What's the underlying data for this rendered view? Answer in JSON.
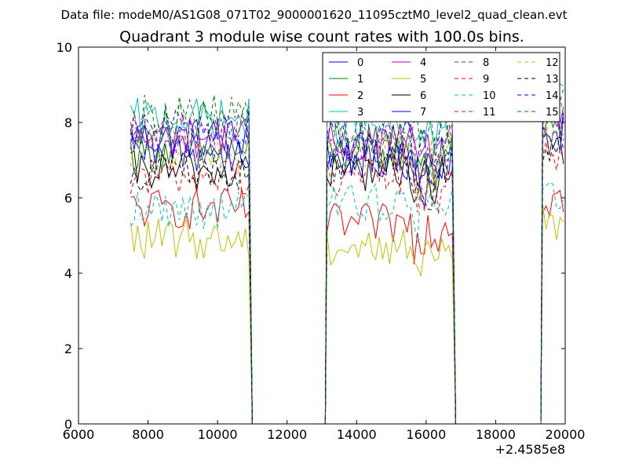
{
  "suptitle": "Data file: modeM0/AS1G08_071T02_9000001620_11095cztM0_level2_quad_clean.evt",
  "chart_data": {
    "type": "line",
    "title": "Quadrant 3 module wise count rates with 100.0s bins.",
    "xlabel": "",
    "ylabel": "",
    "x_offset_label": "+2.4585e8",
    "xlim": [
      6000,
      20000
    ],
    "ylim": [
      0,
      10
    ],
    "x_ticks": [
      "6000",
      "8000",
      "10000",
      "12000",
      "14000",
      "16000",
      "18000",
      "20000"
    ],
    "y_ticks": [
      "0",
      "2",
      "4",
      "6",
      "8",
      "10"
    ],
    "grid": false,
    "legend_position": "top-right",
    "legend_columns": 4,
    "segments": [
      {
        "x_start": 7500,
        "x_end": 10900
      },
      {
        "x_start": 13150,
        "x_end": 16750
      },
      {
        "x_start": 19350,
        "x_end": 20000
      }
    ],
    "gap_value": 0,
    "series": [
      {
        "name": "0",
        "color": "#0000ff",
        "style": "solid",
        "levels": [
          7.6,
          7.0,
          8.1
        ]
      },
      {
        "name": "1",
        "color": "#008000",
        "style": "solid",
        "levels": [
          7.2,
          7.2,
          7.8
        ]
      },
      {
        "name": "2",
        "color": "#ff0000",
        "style": "solid",
        "levels": [
          5.7,
          5.3,
          6.0
        ]
      },
      {
        "name": "3",
        "color": "#00bfbf",
        "style": "solid",
        "levels": [
          8.1,
          7.9,
          8.5
        ]
      },
      {
        "name": "4",
        "color": "#bf00bf",
        "style": "solid",
        "levels": [
          7.6,
          7.5,
          8.2
        ]
      },
      {
        "name": "5",
        "color": "#bfbf00",
        "style": "solid",
        "levels": [
          4.9,
          4.7,
          5.4
        ]
      },
      {
        "name": "6",
        "color": "#000000",
        "style": "solid",
        "levels": [
          6.7,
          6.7,
          7.2
        ]
      },
      {
        "name": "7",
        "color": "#0000ff",
        "style": "solid",
        "levels": [
          7.2,
          7.1,
          7.6
        ]
      },
      {
        "name": "8",
        "color": "#008000",
        "style": "dashed",
        "levels": [
          8.2,
          7.7,
          8.6
        ]
      },
      {
        "name": "9",
        "color": "#ff0000",
        "style": "dashed",
        "levels": [
          6.6,
          6.6,
          7.0
        ]
      },
      {
        "name": "10",
        "color": "#00bfbf",
        "style": "dashed",
        "levels": [
          5.7,
          5.9,
          6.2
        ]
      },
      {
        "name": "11",
        "color": "#bf00bf",
        "style": "dashed",
        "levels": [
          7.7,
          7.4,
          8.0
        ]
      },
      {
        "name": "12",
        "color": "#bfbf00",
        "style": "dashed",
        "levels": [
          7.2,
          7.3,
          7.6
        ]
      },
      {
        "name": "13",
        "color": "#000000",
        "style": "dashed",
        "levels": [
          6.7,
          6.9,
          7.2
        ]
      },
      {
        "name": "14",
        "color": "#0000ff",
        "style": "dashed",
        "levels": [
          7.8,
          7.6,
          8.4
        ]
      },
      {
        "name": "15",
        "color": "#008000",
        "style": "dashed",
        "levels": [
          8.0,
          7.7,
          8.6
        ]
      }
    ]
  }
}
